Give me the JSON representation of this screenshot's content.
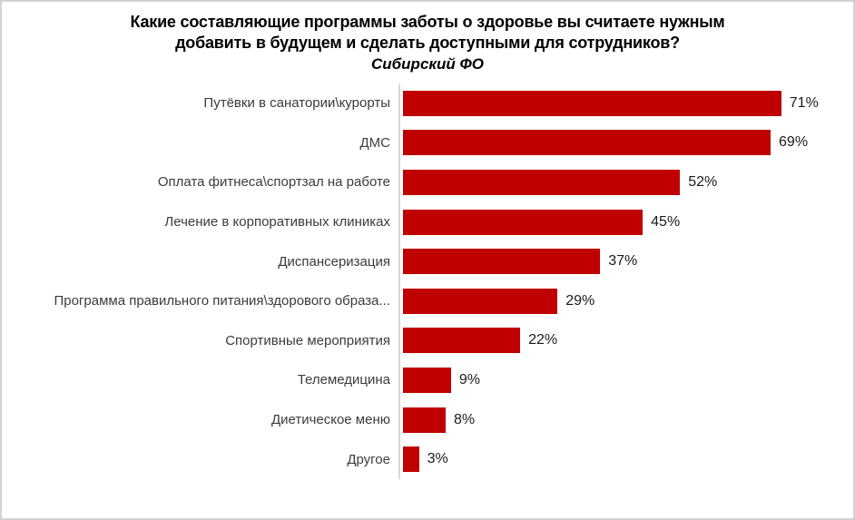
{
  "chart_data": {
    "type": "bar",
    "orientation": "horizontal",
    "title": "Какие составляющие программы заботы о здоровье вы считаете нужным добавить в будущем и сделать доступными для сотрудников?",
    "title_lines": [
      "Какие составляющие программы заботы о здоровье вы считаете нужным",
      "добавить в будущем и сделать доступными для сотрудников?"
    ],
    "subtitle": "Сибирский ФО",
    "categories": [
      "Путёвки в санатории\\курорты",
      "ДМС",
      "Оплата фитнеса\\спортзал на работе",
      "Лечение в корпоративных клиниках",
      "Диспансеризация",
      "Программа правильного питания\\здорового образа...",
      "Спортивные мероприятия",
      "Телемедицина",
      "Диетическое меню",
      "Другое"
    ],
    "values": [
      71,
      69,
      52,
      45,
      37,
      29,
      22,
      9,
      8,
      3
    ],
    "value_labels": [
      "71%",
      "69%",
      "52%",
      "45%",
      "37%",
      "29%",
      "22%",
      "9%",
      "8%",
      "3%"
    ],
    "xlabel": "",
    "ylabel": "",
    "xlim": [
      0,
      80
    ],
    "grid": false,
    "legend": false,
    "bar_color": "#c00000",
    "axis_line_color": "#d9d9d9",
    "background_color": "#ffffff",
    "border_color": "#d2d2d2"
  }
}
